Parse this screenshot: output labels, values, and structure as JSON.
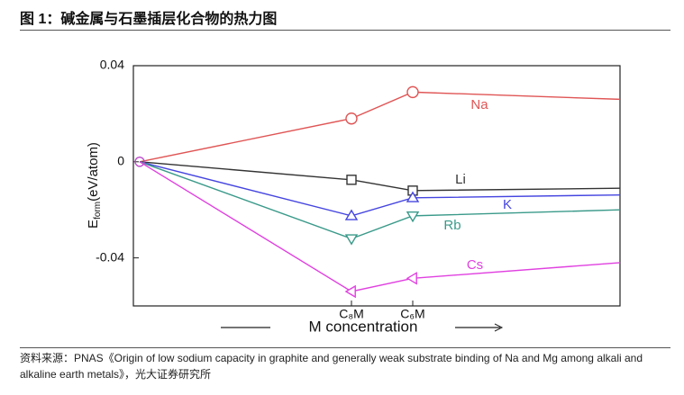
{
  "header": {
    "title": "图 1：碱金属与石墨插层化合物的热力图"
  },
  "chart_data": {
    "type": "line",
    "y_label": "E",
    "y_label_sub": "form",
    "y_label_unit": "(eV/atom)",
    "x_label": "M concentration",
    "categories": [
      null,
      "C₈M",
      "C₆M",
      null
    ],
    "series": [
      {
        "name": "Na",
        "color": "#e05555",
        "marker": "circle",
        "values": [
          0,
          0.018,
          0.029,
          0.026
        ]
      },
      {
        "name": "Li",
        "color": "#333333",
        "marker": "square",
        "values": [
          0,
          -0.0075,
          -0.012,
          -0.011
        ]
      },
      {
        "name": "K",
        "color": "#4545e0",
        "marker": "triangle-up",
        "values": [
          0,
          -0.0225,
          -0.015,
          -0.0138
        ]
      },
      {
        "name": "Rb",
        "color": "#3a9a8a",
        "marker": "triangle-down",
        "values": [
          0,
          -0.032,
          -0.0225,
          -0.02
        ]
      },
      {
        "name": "Cs",
        "color": "#e040e0",
        "marker": "triangle-left",
        "values": [
          0,
          -0.054,
          -0.0485,
          -0.042
        ]
      }
    ],
    "ylim": [
      -0.06,
      0.04
    ],
    "yticks": [
      0.04,
      0,
      -0.04
    ]
  },
  "footer": {
    "source": "资料来源：PNAS《Origin of low sodium capacity in graphite and generally weak substrate binding of Na and Mg among alkali and alkaline earth metals》，光大证券研究所"
  }
}
